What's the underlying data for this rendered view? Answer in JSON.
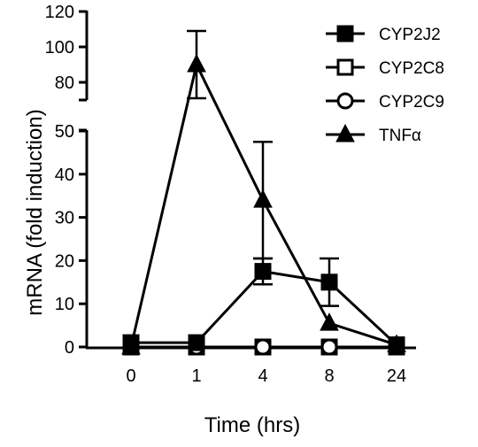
{
  "chart_data": {
    "type": "line",
    "title": "",
    "xlabel": "Time (hrs)",
    "ylabel": "mRNA (fold induction)",
    "categories": [
      "0",
      "1",
      "4",
      "8",
      "24"
    ],
    "y_axis_break": {
      "lower_range": [
        0,
        50
      ],
      "upper_range": [
        70,
        120
      ]
    },
    "y_ticks_lower": [
      "0",
      "10",
      "20",
      "30",
      "40",
      "50"
    ],
    "y_ticks_upper": [
      "80",
      "100",
      "120"
    ],
    "grid": false,
    "legend_position": "top-right",
    "series": [
      {
        "name": "CYP2J2",
        "marker": "filled-square",
        "values": [
          1,
          1,
          17.5,
          15,
          0.5
        ],
        "errors": [
          0,
          0,
          3,
          5.5,
          0
        ]
      },
      {
        "name": "CYP2C8",
        "marker": "open-square",
        "values": [
          0,
          0,
          0,
          0,
          0
        ],
        "errors": [
          0,
          0,
          0,
          0,
          0
        ]
      },
      {
        "name": "CYP2C9",
        "marker": "open-circle",
        "values": [
          0,
          0,
          0,
          0,
          0
        ],
        "errors": [
          0,
          0,
          0,
          0,
          0
        ]
      },
      {
        "name": "TNFα",
        "marker": "filled-triangle",
        "values": [
          0,
          90,
          34,
          5.5,
          0.5
        ],
        "errors": [
          0,
          19,
          13.5,
          0,
          0
        ]
      }
    ],
    "colors": {
      "line": "#000000",
      "fill": "#000000",
      "open": "#ffffff"
    }
  }
}
